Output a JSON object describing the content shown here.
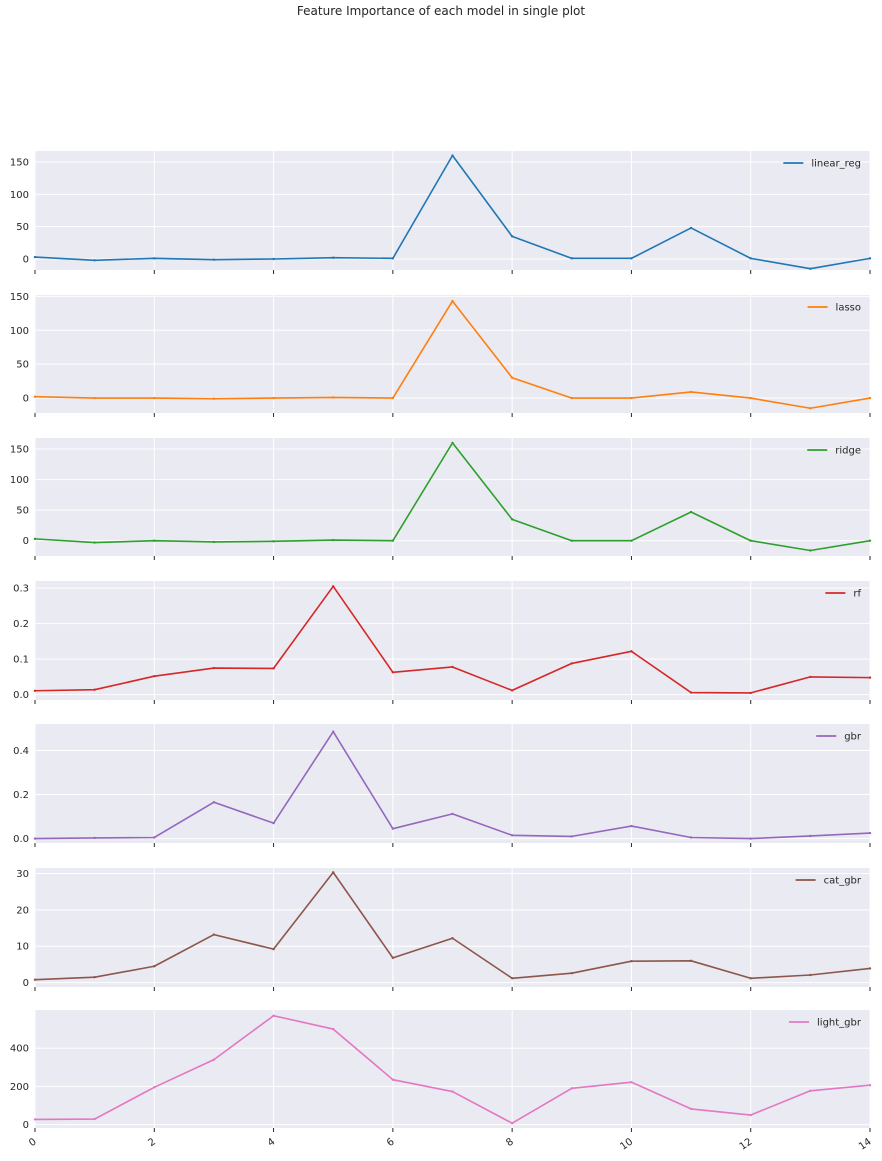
{
  "title": "Feature Importance of each model in single plot",
  "chart_data": {
    "type": "line",
    "title": "Feature Importance of each model in single plot",
    "shared_x": {
      "range": [
        0,
        14
      ],
      "ticks": [
        0,
        2,
        4,
        6,
        8,
        10,
        12,
        14
      ],
      "tick_labels": [
        "0",
        "2",
        "4",
        "6",
        "8",
        "10",
        "12",
        "14"
      ],
      "rotation_deg": 35
    },
    "x": [
      0,
      1,
      2,
      3,
      4,
      5,
      6,
      7,
      8,
      9,
      10,
      11,
      12,
      13,
      14
    ],
    "grid": true,
    "legend_placement": "top-right",
    "subplots": [
      {
        "name": "linear_reg",
        "color": "#1f77b4",
        "ylim": [
          -17,
          167
        ],
        "yticks": [
          0,
          50,
          100,
          150
        ],
        "ytick_labels": [
          "0",
          "50",
          "100",
          "150"
        ],
        "values": [
          3,
          -2,
          1,
          -1,
          0,
          2,
          1,
          160,
          35,
          1,
          1,
          48,
          1,
          -15,
          1
        ]
      },
      {
        "name": "lasso",
        "color": "#ff7f0e",
        "ylim": [
          -22,
          152
        ],
        "yticks": [
          0,
          50,
          100,
          150
        ],
        "ytick_labels": [
          "0",
          "50",
          "100",
          "150"
        ],
        "values": [
          2,
          0,
          0,
          -1,
          0,
          1,
          0,
          143,
          30,
          0,
          0,
          9,
          0,
          -15,
          0
        ]
      },
      {
        "name": "ridge",
        "color": "#2ca02c",
        "ylim": [
          -25,
          168
        ],
        "yticks": [
          0,
          50,
          100,
          150
        ],
        "ytick_labels": [
          "0",
          "50",
          "100",
          "150"
        ],
        "values": [
          3,
          -3,
          0,
          -2,
          -1,
          1,
          0,
          160,
          35,
          0,
          0,
          47,
          0,
          -16,
          0
        ]
      },
      {
        "name": "rf",
        "color": "#d62728",
        "ylim": [
          -0.015,
          0.32
        ],
        "yticks": [
          0.0,
          0.1,
          0.2,
          0.3
        ],
        "ytick_labels": [
          "0.0",
          "0.1",
          "0.2",
          "0.3"
        ],
        "values": [
          0.011,
          0.014,
          0.052,
          0.075,
          0.074,
          0.305,
          0.063,
          0.078,
          0.012,
          0.088,
          0.122,
          0.006,
          0.005,
          0.05,
          0.048
        ]
      },
      {
        "name": "gbr",
        "color": "#9467bd",
        "ylim": [
          -0.02,
          0.52
        ],
        "yticks": [
          0.0,
          0.2,
          0.4
        ],
        "ytick_labels": [
          "0.0",
          "0.2",
          "0.4"
        ],
        "values": [
          0.0,
          0.003,
          0.005,
          0.165,
          0.07,
          0.485,
          0.045,
          0.112,
          0.015,
          0.01,
          0.057,
          0.005,
          0.0,
          0.012,
          0.025
        ]
      },
      {
        "name": "cat_gbr",
        "color": "#8c564b",
        "ylim": [
          -1.2,
          31.5
        ],
        "yticks": [
          0,
          10,
          20,
          30
        ],
        "ytick_labels": [
          "0",
          "10",
          "20",
          "30"
        ],
        "values": [
          0.8,
          1.5,
          4.5,
          13.2,
          9.2,
          30.3,
          6.8,
          12.2,
          1.2,
          2.6,
          5.9,
          6.0,
          1.2,
          2.1,
          3.9
        ]
      },
      {
        "name": "light_gbr",
        "color": "#e377c2",
        "ylim": [
          -18,
          600
        ],
        "yticks": [
          0,
          200,
          400
        ],
        "ytick_labels": [
          "0",
          "200",
          "400"
        ],
        "values": [
          27,
          29,
          195,
          340,
          570,
          500,
          235,
          173,
          7,
          190,
          222,
          82,
          50,
          177,
          206
        ]
      }
    ]
  }
}
